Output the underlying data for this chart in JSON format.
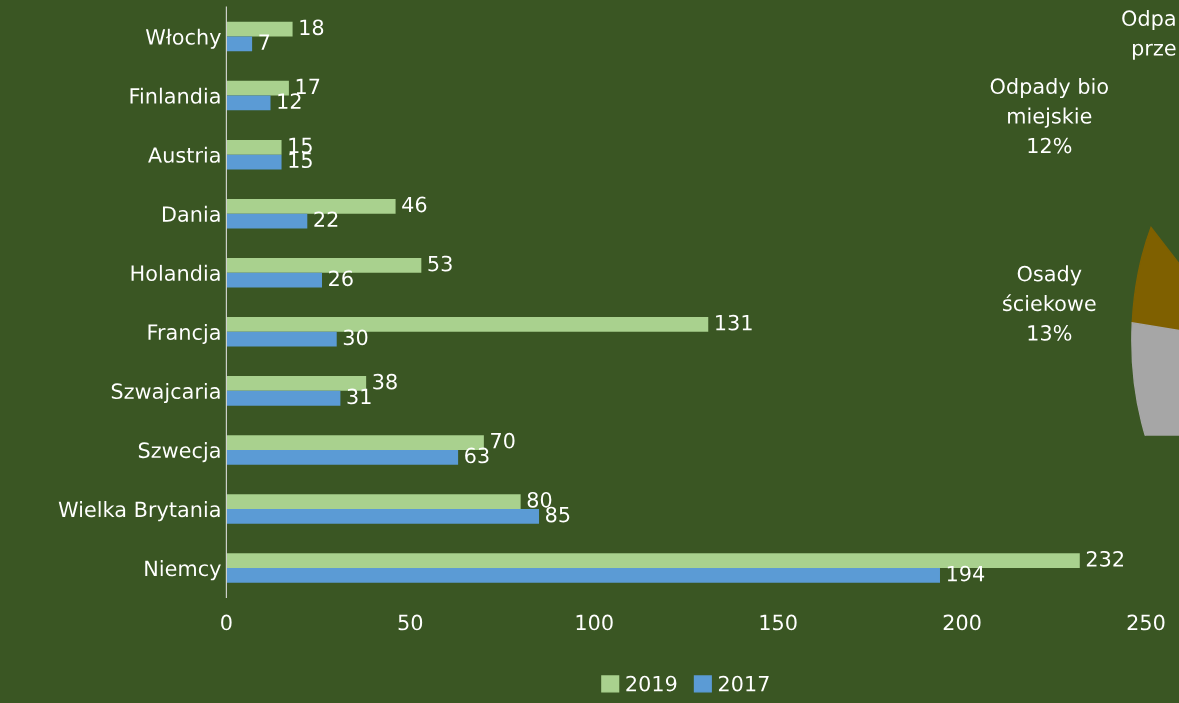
{
  "chart_data": [
    {
      "type": "bar",
      "orientation": "horizontal",
      "categories": [
        "Włochy",
        "Finlandia",
        "Austria",
        "Dania",
        "Holandia",
        "Francja",
        "Szwajcaria",
        "Szwecja",
        "Wielka Brytania",
        "Niemcy"
      ],
      "series": [
        {
          "name": "2019",
          "color": "#a9d18e",
          "values": [
            18,
            17,
            15,
            46,
            53,
            131,
            38,
            70,
            80,
            232
          ]
        },
        {
          "name": "2017",
          "color": "#5b9bd5",
          "values": [
            7,
            12,
            15,
            22,
            26,
            30,
            31,
            63,
            85,
            194
          ]
        }
      ],
      "xlim": [
        0,
        250
      ],
      "xticks": [
        0,
        50,
        100,
        150,
        200,
        250
      ],
      "data_labels": true,
      "grid": false,
      "legend": "bottom"
    },
    {
      "type": "other",
      "annotations": [
        "Odpady bio\nmiejskie\n12%",
        "Osady\nściekowe\n13%",
        "Odpa\nprze"
      ]
    }
  ]
}
